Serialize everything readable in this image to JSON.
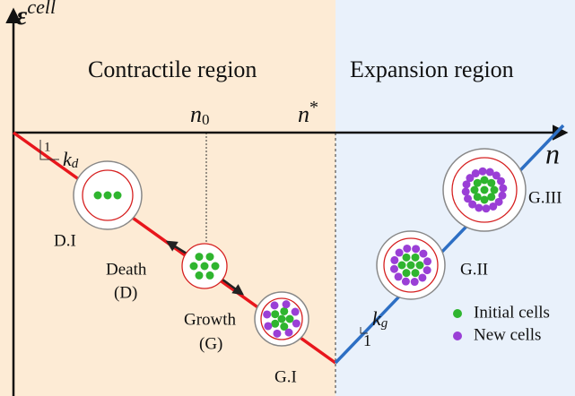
{
  "axes": {
    "y_label": "ε",
    "y_label_sup": "cell",
    "x_label": "n",
    "n0": "n",
    "n0_sub": "0",
    "nstar": "n",
    "nstar_sup": "*"
  },
  "regions": {
    "left": "Contractile region",
    "right": "Expansion region"
  },
  "slopes": {
    "d_one": "1",
    "d_k": "k",
    "d_sub": "d",
    "g_one": "1",
    "g_k": "k",
    "g_sub": "g"
  },
  "labels": {
    "di": "D.I",
    "death": "Death",
    "death_abbr": "(D)",
    "growth": "Growth",
    "growth_abbr": "(G)",
    "gi": "G.I",
    "gii": "G.II",
    "giii": "G.III"
  },
  "legend": {
    "initial": "Initial cells",
    "new": "New cells"
  }
}
